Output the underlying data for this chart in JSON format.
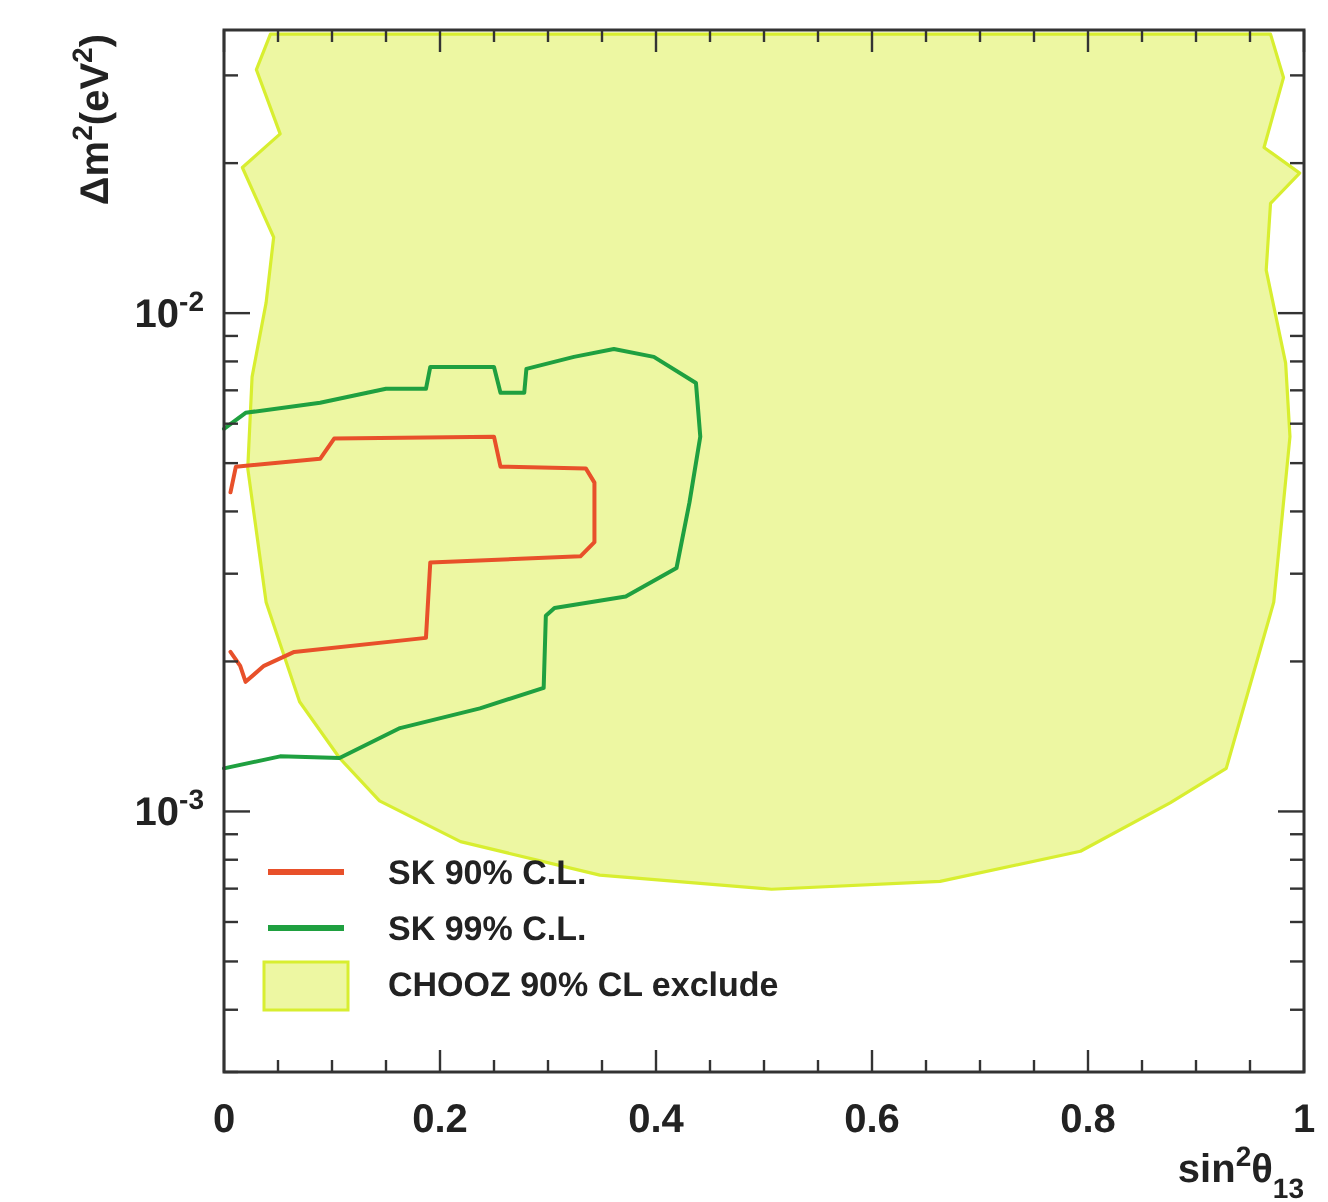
{
  "chart_data": {
    "type": "line",
    "xlabel": "sin$^{2}$θ$_{13}$",
    "ylabel": "Δm$^{2}$(eV$^{2}$)",
    "log": "y",
    "grid": false,
    "legend": "bottom left",
    "line_style": "solid",
    "marker": "none",
    "xlim": [
      0,
      1
    ],
    "ylim": [
      0.0003,
      0.037
    ],
    "xticks": [
      0,
      {
        "value": 0.05,
        "label": null
      },
      {
        "value": 0.1,
        "label": null
      },
      {
        "value": 0.15,
        "label": null
      },
      {
        "value": 0.2,
        "label": "0.2"
      },
      {
        "value": 0.25,
        "label": null
      },
      {
        "value": 0.3,
        "label": null
      },
      {
        "value": 0.35,
        "label": null
      },
      {
        "value": 0.4,
        "label": "0.4"
      },
      {
        "value": 0.45,
        "label": null
      },
      {
        "value": 0.5,
        "label": null
      },
      {
        "value": 0.55,
        "label": null
      },
      {
        "value": 0.6,
        "label": "0.6"
      },
      {
        "value": 0.65,
        "label": null
      },
      {
        "value": 0.7,
        "label": null
      },
      {
        "value": 0.75,
        "label": null
      },
      {
        "value": 0.8,
        "label": "0.8"
      },
      {
        "value": 0.85,
        "label": null
      },
      {
        "value": 0.9,
        "label": null
      },
      {
        "value": 0.95,
        "label": null
      },
      1
    ],
    "yticks": [
      {
        "value": 0.0003,
        "label": null
      },
      {
        "value": 0.0004,
        "label": null
      },
      {
        "value": 0.0005,
        "label": null
      },
      {
        "value": 0.0006,
        "label": null
      },
      {
        "value": 0.0007,
        "label": null
      },
      {
        "value": 0.0008,
        "label": null
      },
      {
        "value": 0.0009,
        "label": null
      },
      {
        "value": 0.001,
        "label": "10$^{-3}$"
      },
      {
        "value": 0.002,
        "label": null
      },
      {
        "value": 0.003,
        "label": null
      },
      {
        "value": 0.004,
        "label": null
      },
      {
        "value": 0.005,
        "label": null
      },
      {
        "value": 0.006,
        "label": null
      },
      {
        "value": 0.007,
        "label": null
      },
      {
        "value": 0.008,
        "label": null
      },
      {
        "value": 0.009,
        "label": null
      },
      {
        "value": 0.01,
        "label": "10$^{-2}$"
      },
      {
        "value": 0.02,
        "label": null
      },
      {
        "value": 0.03,
        "label": null
      }
    ],
    "series": [
      {
        "name": "SK 90% C.L.",
        "color": "#e8502a",
        "x": [
          0.006,
          0.011,
          0.089,
          0.102,
          0.25,
          0.256,
          0.335,
          0.343,
          0.343,
          0.33,
          0.191,
          0.187,
          0.065,
          0.037,
          0.02,
          0.015,
          0.006
        ],
        "values": [
          0.00437,
          0.00492,
          0.0051,
          0.0056,
          0.00565,
          0.00492,
          0.00488,
          0.00457,
          0.00347,
          0.00325,
          0.00316,
          0.00223,
          0.00209,
          0.00196,
          0.00182,
          0.00196,
          0.00209
        ]
      },
      {
        "name": "SK 99% C.L.",
        "color": "#1fa040",
        "x": [
          0,
          0.02,
          0.089,
          0.15,
          0.187,
          0.191,
          0.25,
          0.256,
          0.278,
          0.28,
          0.324,
          0.361,
          0.398,
          0.437,
          0.441,
          0.431,
          0.419,
          0.372,
          0.306,
          0.298,
          0.296,
          0.237,
          0.163,
          0.107,
          0.052,
          0
        ],
        "values": [
          0.00586,
          0.00631,
          0.00661,
          0.00705,
          0.00705,
          0.0078,
          0.0078,
          0.00692,
          0.00692,
          0.00773,
          0.00817,
          0.00847,
          0.00817,
          0.00724,
          0.00565,
          0.00417,
          0.00308,
          0.0027,
          0.00256,
          0.00247,
          0.00177,
          0.00161,
          0.00147,
          0.00128,
          0.00129,
          0.00122
        ]
      },
      {
        "name": "CHOOZ 90% CL exclude",
        "type": "area",
        "color": "#d8ee30",
        "x": [
          0.043,
          0.03,
          0.052,
          0.017,
          0.046,
          0.039,
          0.026,
          0.022,
          0.039,
          0.07,
          0.107,
          0.144,
          0.219,
          0.348,
          0.507,
          0.663,
          0.793,
          0.876,
          0.928,
          0.972,
          0.987,
          0.983,
          0.965,
          0.969,
          0.996,
          0.963,
          0.981,
          0.969
        ],
        "values": [
          0.0363,
          0.0308,
          0.0229,
          0.0196,
          0.0142,
          0.0105,
          0.00745,
          0.00488,
          0.00263,
          0.00166,
          0.00128,
          0.00105,
          0.00087,
          0.000745,
          0.000698,
          0.000724,
          0.000832,
          0.00104,
          0.00122,
          0.00263,
          0.00565,
          0.00794,
          0.0122,
          0.0166,
          0.0191,
          0.0215,
          0.0297,
          0.0363
        ]
      }
    ]
  }
}
